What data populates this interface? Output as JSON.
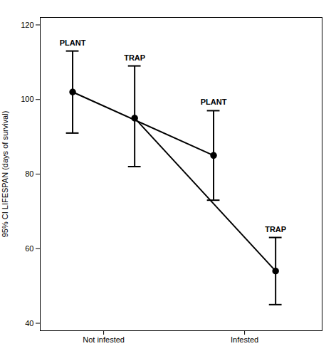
{
  "chart_data": {
    "type": "line",
    "categories": [
      "Not infested",
      "Infested"
    ],
    "series": [
      {
        "name": "PLANT",
        "color": "#000000",
        "marker": "o",
        "values": [
          102,
          85
        ],
        "ci_lower": [
          91,
          73
        ],
        "ci_upper": [
          113,
          97
        ]
      },
      {
        "name": "TRAP",
        "color": "#000000",
        "marker": "o",
        "values": [
          95,
          54
        ],
        "ci_lower": [
          82,
          45
        ],
        "ci_upper": [
          109,
          63
        ]
      }
    ],
    "ylabel": "95% CI LIFESPAN (days of survival)",
    "ylim": [
      38,
      122
    ],
    "yticks": [
      40,
      60,
      80,
      100,
      120
    ],
    "grid": false
  }
}
